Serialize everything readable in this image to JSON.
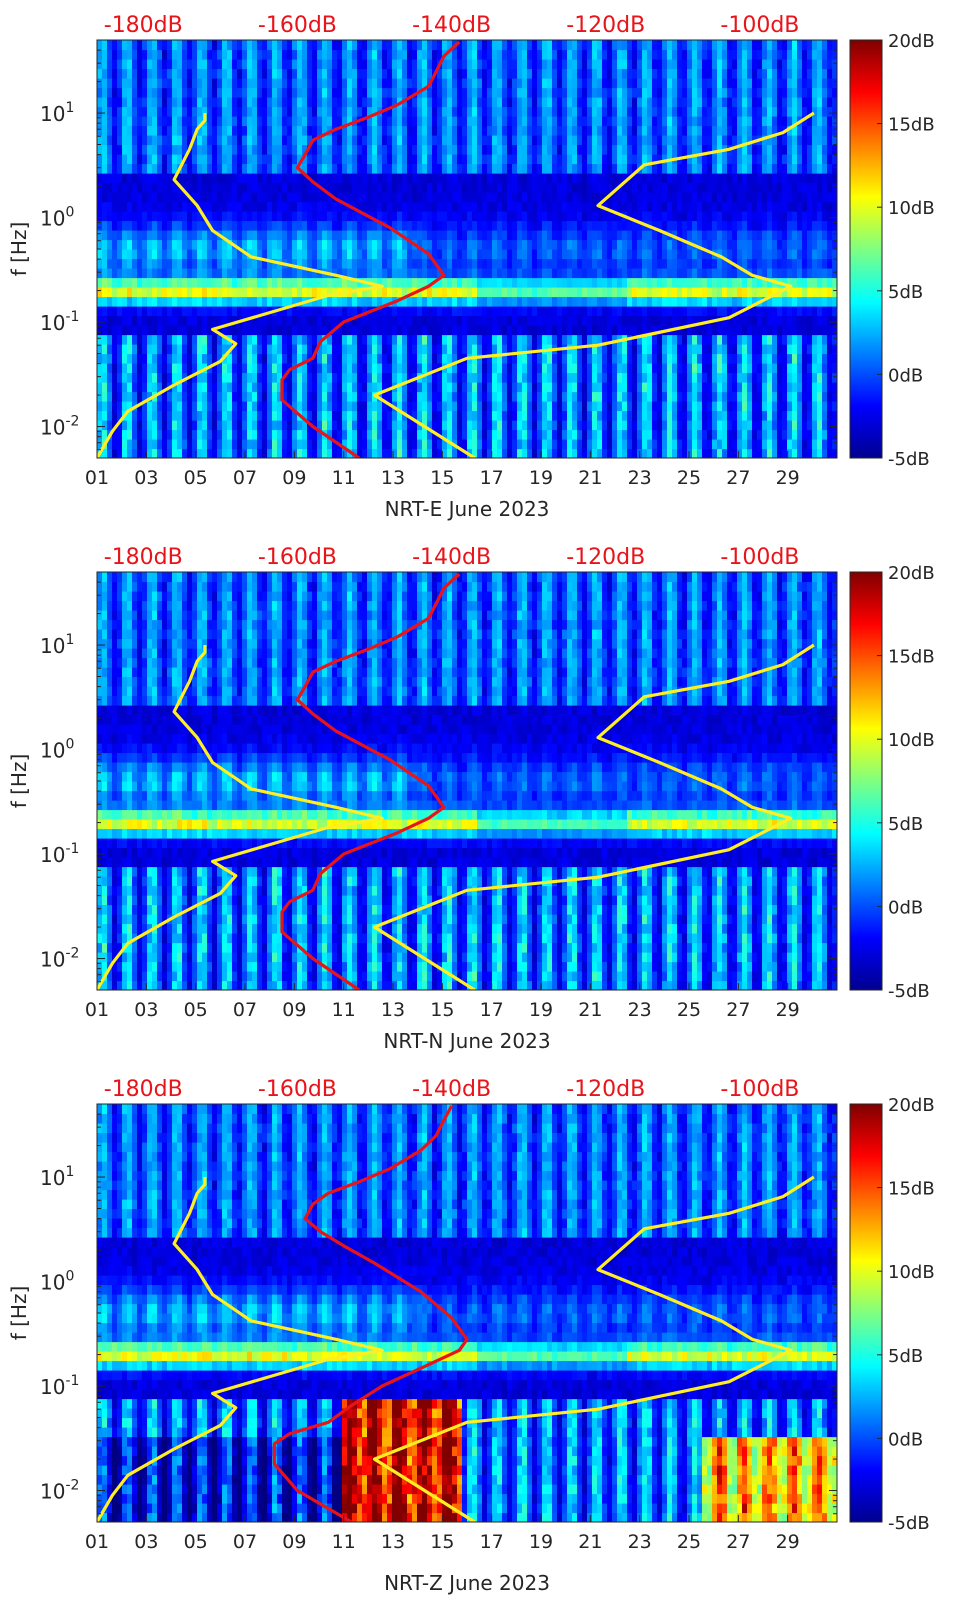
{
  "chart_data": [
    {
      "type": "heatmap",
      "title": "",
      "xlabel": "NRT-E June 2023",
      "ylabel": "f [Hz]",
      "x_tick_labels": [
        "01",
        "03",
        "05",
        "07",
        "09",
        "11",
        "13",
        "15",
        "17",
        "19",
        "21",
        "23",
        "25",
        "27",
        "29"
      ],
      "x_tick_days": [
        1,
        3,
        5,
        7,
        9,
        11,
        13,
        15,
        17,
        19,
        21,
        23,
        25,
        27,
        29
      ],
      "xlim": [
        1,
        31
      ],
      "y_scale": "log",
      "ylim": [
        0.005,
        50
      ],
      "y_tick_labels": [
        "10^-2",
        "10^-1",
        "10^0",
        "10^1"
      ],
      "y_tick_values": [
        0.01,
        0.1,
        1,
        10
      ],
      "top_axis_labels": [
        "-180dB",
        "-160dB",
        "-140dB",
        "-120dB",
        "-100dB"
      ],
      "top_axis_values": [
        -180,
        -160,
        -140,
        -120,
        -100
      ],
      "top_axis_range": [
        -186,
        -90
      ],
      "top_axis_color": "#e8141a",
      "colorbar_labels": [
        "20dB",
        "15dB",
        "10dB",
        "5dB",
        "0dB",
        "-5dB"
      ],
      "colorbar_values": [
        20,
        15,
        10,
        5,
        0,
        -5
      ],
      "colorbar_range": [
        -5,
        20
      ],
      "colormap": "jet",
      "grid": false,
      "series": [
        {
          "color": "#ffee22",
          "x_db": [
            -186,
            -184,
            -182,
            -176,
            -170,
            -168,
            -171,
            -156,
            -149,
            -155,
            -166,
            -171,
            -173,
            -176,
            -174,
            -173,
            -172,
            -172,
            -172
          ],
          "f": [
            0.005,
            0.009,
            0.014,
            0.025,
            0.042,
            0.062,
            0.085,
            0.18,
            0.22,
            0.28,
            0.42,
            0.75,
            1.3,
            2.3,
            4.5,
            7.0,
            8.5,
            9.5,
            10.0
          ]
        },
        {
          "color": "#ffee22",
          "x_db": [
            -137,
            -150,
            -138,
            -121,
            -104,
            -96,
            -101,
            -105,
            -113,
            -121,
            -115,
            -104,
            -97,
            -93
          ],
          "f": [
            0.005,
            0.02,
            0.045,
            0.06,
            0.11,
            0.22,
            0.28,
            0.42,
            0.75,
            1.3,
            3.2,
            4.5,
            6.5,
            10.0
          ]
        },
        {
          "color": "#e8141a",
          "x_db": [
            -152,
            -158,
            -162,
            -162,
            -161,
            -158,
            -157,
            -154,
            -147,
            -143,
            -141,
            -143,
            -148,
            -155,
            -158,
            -160,
            -159,
            -158,
            -155,
            -151,
            -147,
            -143,
            -142,
            -141,
            -139
          ],
          "f": [
            0.005,
            0.01,
            0.018,
            0.028,
            0.035,
            0.045,
            0.065,
            0.1,
            0.16,
            0.22,
            0.28,
            0.45,
            0.8,
            1.5,
            2.2,
            3.0,
            4.0,
            5.5,
            7.0,
            9.0,
            12.0,
            18.0,
            25.0,
            35.0,
            48.0
          ]
        }
      ]
    },
    {
      "type": "heatmap",
      "title": "",
      "xlabel": "NRT-N June 2023",
      "ylabel": "f [Hz]",
      "x_tick_labels": [
        "01",
        "03",
        "05",
        "07",
        "09",
        "11",
        "13",
        "15",
        "17",
        "19",
        "21",
        "23",
        "25",
        "27",
        "29"
      ],
      "x_tick_days": [
        1,
        3,
        5,
        7,
        9,
        11,
        13,
        15,
        17,
        19,
        21,
        23,
        25,
        27,
        29
      ],
      "xlim": [
        1,
        31
      ],
      "y_scale": "log",
      "ylim": [
        0.005,
        50
      ],
      "y_tick_labels": [
        "10^-2",
        "10^-1",
        "10^0",
        "10^1"
      ],
      "y_tick_values": [
        0.01,
        0.1,
        1,
        10
      ],
      "top_axis_labels": [
        "-180dB",
        "-160dB",
        "-140dB",
        "-120dB",
        "-100dB"
      ],
      "top_axis_values": [
        -180,
        -160,
        -140,
        -120,
        -100
      ],
      "top_axis_range": [
        -186,
        -90
      ],
      "top_axis_color": "#e8141a",
      "colorbar_labels": [
        "20dB",
        "15dB",
        "10dB",
        "5dB",
        "0dB",
        "-5dB"
      ],
      "colorbar_values": [
        20,
        15,
        10,
        5,
        0,
        -5
      ],
      "colorbar_range": [
        -5,
        20
      ],
      "colormap": "jet",
      "grid": false,
      "series": [
        {
          "color": "#ffee22",
          "x_db": [
            -186,
            -184,
            -182,
            -176,
            -170,
            -168,
            -171,
            -156,
            -149,
            -155,
            -166,
            -171,
            -173,
            -176,
            -174,
            -173,
            -172,
            -172,
            -172
          ],
          "f": [
            0.005,
            0.009,
            0.014,
            0.025,
            0.042,
            0.062,
            0.085,
            0.18,
            0.22,
            0.28,
            0.42,
            0.75,
            1.3,
            2.3,
            4.5,
            7.0,
            8.5,
            9.5,
            10.0
          ]
        },
        {
          "color": "#ffee22",
          "x_db": [
            -137,
            -150,
            -138,
            -121,
            -104,
            -96,
            -101,
            -105,
            -113,
            -121,
            -115,
            -104,
            -97,
            -93
          ],
          "f": [
            0.005,
            0.02,
            0.045,
            0.06,
            0.11,
            0.22,
            0.28,
            0.42,
            0.75,
            1.3,
            3.2,
            4.5,
            6.5,
            10.0
          ]
        },
        {
          "color": "#e8141a",
          "x_db": [
            -152,
            -158,
            -162,
            -162,
            -161,
            -158,
            -157,
            -154,
            -147,
            -143,
            -141,
            -143,
            -148,
            -155,
            -158,
            -160,
            -159,
            -158,
            -155,
            -151,
            -147,
            -143,
            -142,
            -141,
            -139
          ],
          "f": [
            0.005,
            0.01,
            0.018,
            0.028,
            0.035,
            0.045,
            0.065,
            0.1,
            0.16,
            0.22,
            0.28,
            0.45,
            0.8,
            1.5,
            2.2,
            3.0,
            4.0,
            5.5,
            7.0,
            9.0,
            12.0,
            18.0,
            25.0,
            35.0,
            48.0
          ]
        }
      ]
    },
    {
      "type": "heatmap",
      "title": "",
      "xlabel": "NRT-Z June 2023",
      "ylabel": "f [Hz]",
      "x_tick_labels": [
        "01",
        "03",
        "05",
        "07",
        "09",
        "11",
        "13",
        "15",
        "17",
        "19",
        "21",
        "23",
        "25",
        "27",
        "29"
      ],
      "x_tick_days": [
        1,
        3,
        5,
        7,
        9,
        11,
        13,
        15,
        17,
        19,
        21,
        23,
        25,
        27,
        29
      ],
      "xlim": [
        1,
        31
      ],
      "y_scale": "log",
      "ylim": [
        0.005,
        50
      ],
      "y_tick_labels": [
        "10^-2",
        "10^-1",
        "10^0",
        "10^1"
      ],
      "y_tick_values": [
        0.01,
        0.1,
        1,
        10
      ],
      "top_axis_labels": [
        "-180dB",
        "-160dB",
        "-140dB",
        "-120dB",
        "-100dB"
      ],
      "top_axis_values": [
        -180,
        -160,
        -140,
        -120,
        -100
      ],
      "top_axis_range": [
        -186,
        -90
      ],
      "top_axis_color": "#e8141a",
      "colorbar_labels": [
        "20dB",
        "15dB",
        "10dB",
        "5dB",
        "0dB",
        "-5dB"
      ],
      "colorbar_values": [
        20,
        15,
        10,
        5,
        0,
        -5
      ],
      "colorbar_range": [
        -5,
        20
      ],
      "colormap": "jet",
      "grid": false,
      "series": [
        {
          "color": "#ffee22",
          "x_db": [
            -186,
            -184,
            -182,
            -176,
            -170,
            -168,
            -171,
            -156,
            -149,
            -155,
            -166,
            -171,
            -173,
            -176,
            -174,
            -173,
            -172,
            -172,
            -172
          ],
          "f": [
            0.005,
            0.009,
            0.014,
            0.025,
            0.042,
            0.062,
            0.085,
            0.18,
            0.22,
            0.28,
            0.42,
            0.75,
            1.3,
            2.3,
            4.5,
            7.0,
            8.5,
            9.5,
            10.0
          ]
        },
        {
          "color": "#ffee22",
          "x_db": [
            -137,
            -150,
            -138,
            -121,
            -104,
            -96,
            -101,
            -105,
            -113,
            -121,
            -115,
            -104,
            -97,
            -93
          ],
          "f": [
            0.005,
            0.02,
            0.045,
            0.06,
            0.11,
            0.22,
            0.28,
            0.42,
            0.75,
            1.3,
            3.2,
            4.5,
            6.5,
            10.0
          ]
        },
        {
          "color": "#e8141a",
          "x_db": [
            -153,
            -160,
            -163,
            -163,
            -161,
            -156,
            -153,
            -149,
            -143,
            -139,
            -138,
            -140,
            -144,
            -150,
            -154,
            -157,
            -159,
            -158,
            -156,
            -152,
            -148,
            -144,
            -142,
            -141,
            -140
          ],
          "f": [
            0.005,
            0.01,
            0.018,
            0.028,
            0.035,
            0.045,
            0.065,
            0.1,
            0.16,
            0.22,
            0.28,
            0.45,
            0.8,
            1.5,
            2.2,
            3.0,
            4.0,
            5.5,
            7.0,
            9.0,
            12.0,
            18.0,
            25.0,
            35.0,
            48.0
          ]
        }
      ]
    }
  ]
}
